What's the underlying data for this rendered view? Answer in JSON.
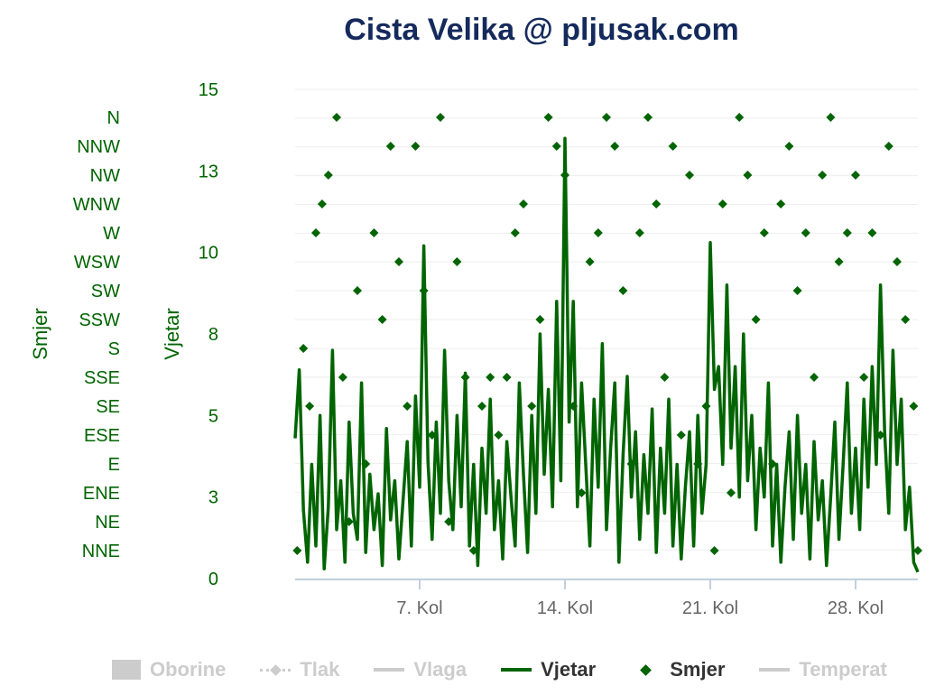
{
  "title": "Cista Velika @ pljusak.com",
  "colors": {
    "title": "#152a5c",
    "series": "#006400",
    "axis_text": "#006400",
    "legend_off": "#cccccc",
    "legend_on": "#333333"
  },
  "y_axis_left": {
    "title": "Vjetar",
    "ticks": [
      "15",
      "13",
      "10",
      "8",
      "5",
      "3",
      "0"
    ],
    "range": [
      0,
      15
    ]
  },
  "y_axis_dir": {
    "title": "Smjer",
    "labels": [
      "N",
      "NNW",
      "NW",
      "WNW",
      "W",
      "WSW",
      "SW",
      "SSW",
      "S",
      "SSE",
      "SE",
      "ESE",
      "E",
      "ENE",
      "NE",
      "NNE"
    ]
  },
  "x_axis": {
    "ticks": [
      "7. Kol",
      "14. Kol",
      "21. Kol",
      "28. Kol"
    ],
    "range_days": [
      1,
      31
    ]
  },
  "legend": [
    {
      "label": "Oborine",
      "symbol": "box",
      "active": false
    },
    {
      "label": "Tlak",
      "symbol": "dash-diamond",
      "active": false
    },
    {
      "label": "Vlaga",
      "symbol": "line",
      "active": false
    },
    {
      "label": "Vjetar",
      "symbol": "line",
      "active": true
    },
    {
      "label": "Smjer",
      "symbol": "diamond",
      "active": true
    },
    {
      "label": "Temperat",
      "symbol": "line",
      "active": false
    }
  ],
  "chart_data": {
    "type": "line",
    "title": "Cista Velika @ pljusak.com",
    "ylabel": "Vjetar",
    "ylim": [
      0,
      15
    ],
    "x_unit": "day of month",
    "grid": true,
    "series": [
      {
        "name": "Vjetar",
        "x": [
          1.0,
          1.2,
          1.4,
          1.6,
          1.8,
          2.0,
          2.2,
          2.4,
          2.6,
          2.8,
          3.0,
          3.2,
          3.4,
          3.6,
          3.8,
          4.0,
          4.2,
          4.4,
          4.6,
          4.8,
          5.0,
          5.2,
          5.4,
          5.6,
          5.8,
          6.0,
          6.2,
          6.4,
          6.6,
          6.8,
          7.0,
          7.2,
          7.4,
          7.6,
          7.8,
          8.0,
          8.2,
          8.4,
          8.6,
          8.8,
          9.0,
          9.2,
          9.4,
          9.6,
          9.8,
          10.0,
          10.2,
          10.4,
          10.6,
          10.8,
          11.0,
          11.2,
          11.4,
          11.6,
          11.8,
          12.0,
          12.2,
          12.4,
          12.6,
          12.8,
          13.0,
          13.2,
          13.4,
          13.6,
          13.8,
          14.0,
          14.2,
          14.4,
          14.6,
          14.8,
          15.0,
          15.2,
          15.4,
          15.6,
          15.8,
          16.0,
          16.2,
          16.4,
          16.6,
          16.8,
          17.0,
          17.2,
          17.4,
          17.6,
          17.8,
          18.0,
          18.2,
          18.4,
          18.6,
          18.8,
          19.0,
          19.2,
          19.4,
          19.6,
          19.8,
          20.0,
          20.2,
          20.4,
          20.6,
          20.8,
          21.0,
          21.2,
          21.4,
          21.6,
          21.8,
          22.0,
          22.2,
          22.4,
          22.6,
          22.8,
          23.0,
          23.2,
          23.4,
          23.6,
          23.8,
          24.0,
          24.2,
          24.4,
          24.6,
          24.8,
          25.0,
          25.2,
          25.4,
          25.6,
          25.8,
          26.0,
          26.2,
          26.4,
          26.6,
          26.8,
          27.0,
          27.2,
          27.4,
          27.6,
          27.8,
          28.0,
          28.2,
          28.4,
          28.6,
          28.8,
          29.0,
          29.2,
          29.4,
          29.6,
          29.8,
          30.0,
          30.2,
          30.4,
          30.6,
          30.8,
          31.0
        ],
        "values": [
          4.3,
          6.4,
          2.1,
          0.5,
          3.5,
          1.0,
          5.0,
          0.3,
          2.2,
          7.0,
          1.5,
          3.0,
          0.5,
          4.8,
          2.0,
          1.2,
          6.0,
          0.8,
          3.2,
          1.5,
          2.6,
          0.4,
          4.6,
          1.8,
          3.0,
          0.6,
          2.4,
          4.2,
          1.0,
          5.6,
          2.8,
          10.2,
          3.6,
          1.2,
          4.8,
          2.0,
          7.0,
          3.0,
          1.5,
          5.0,
          2.2,
          6.3,
          1.0,
          3.5,
          0.4,
          4.0,
          2.0,
          5.5,
          1.5,
          3.0,
          0.6,
          4.2,
          2.5,
          1.0,
          6.0,
          3.2,
          0.8,
          5.0,
          2.0,
          7.5,
          3.2,
          5.8,
          2.2,
          8.5,
          3.0,
          13.5,
          4.8,
          8.5,
          2.2,
          6.0,
          3.5,
          1.0,
          5.5,
          2.8,
          7.2,
          1.5,
          4.0,
          6.0,
          0.5,
          3.8,
          6.2,
          2.5,
          4.5,
          1.2,
          3.8,
          2.0,
          5.2,
          0.8,
          4.0,
          2.0,
          5.5,
          1.0,
          3.5,
          0.6,
          2.8,
          4.5,
          1.0,
          5.0,
          2.0,
          3.5,
          10.3,
          5.8,
          6.5,
          3.5,
          9.0,
          4.0,
          6.5,
          2.5,
          7.5,
          3.0,
          5.0,
          1.5,
          4.0,
          2.5,
          6.0,
          1.0,
          3.5,
          0.5,
          2.8,
          4.5,
          1.2,
          5.0,
          2.0,
          3.5,
          0.6,
          4.2,
          1.8,
          3.0,
          0.4,
          2.5,
          4.8,
          1.2,
          3.5,
          6.0,
          2.0,
          4.0,
          1.5,
          5.5,
          2.8,
          6.5,
          3.5,
          9.0,
          4.5,
          2.0,
          7.0,
          3.5,
          5.5,
          1.5,
          2.8,
          0.5,
          0.2
        ]
      },
      {
        "name": "Smjer",
        "type": "scatter",
        "y_categories": [
          "N",
          "NNW",
          "NW",
          "WNW",
          "W",
          "WSW",
          "SW",
          "SSW",
          "S",
          "SSE",
          "SE",
          "ESE",
          "E",
          "ENE",
          "NE",
          "NNE"
        ],
        "points": [
          [
            1.1,
            "NNE"
          ],
          [
            1.4,
            "S"
          ],
          [
            1.7,
            "SE"
          ],
          [
            2.0,
            "W"
          ],
          [
            2.3,
            "WNW"
          ],
          [
            2.6,
            "NW"
          ],
          [
            3.0,
            "N"
          ],
          [
            3.3,
            "SSE"
          ],
          [
            3.6,
            "NE"
          ],
          [
            4.0,
            "SW"
          ],
          [
            4.4,
            "E"
          ],
          [
            4.8,
            "W"
          ],
          [
            5.2,
            "SSW"
          ],
          [
            5.6,
            "NNW"
          ],
          [
            6.0,
            "WSW"
          ],
          [
            6.4,
            "SE"
          ],
          [
            6.8,
            "NNW"
          ],
          [
            7.2,
            "SW"
          ],
          [
            7.6,
            "ESE"
          ],
          [
            8.0,
            "N"
          ],
          [
            8.4,
            "NE"
          ],
          [
            8.8,
            "WSW"
          ],
          [
            9.2,
            "SSE"
          ],
          [
            9.6,
            "NNE"
          ],
          [
            10.0,
            "SE"
          ],
          [
            10.4,
            "SSE"
          ],
          [
            10.8,
            "ESE"
          ],
          [
            11.2,
            "SSE"
          ],
          [
            11.6,
            "W"
          ],
          [
            12.0,
            "WNW"
          ],
          [
            12.4,
            "SE"
          ],
          [
            12.8,
            "SSW"
          ],
          [
            13.2,
            "N"
          ],
          [
            13.6,
            "NNW"
          ],
          [
            14.0,
            "NW"
          ],
          [
            14.4,
            "SE"
          ],
          [
            14.8,
            "ENE"
          ],
          [
            15.2,
            "WSW"
          ],
          [
            15.6,
            "W"
          ],
          [
            16.0,
            "N"
          ],
          [
            16.4,
            "NNW"
          ],
          [
            16.8,
            "SW"
          ],
          [
            17.2,
            "E"
          ],
          [
            17.6,
            "W"
          ],
          [
            18.0,
            "N"
          ],
          [
            18.4,
            "WNW"
          ],
          [
            18.8,
            "SSE"
          ],
          [
            19.2,
            "NNW"
          ],
          [
            19.6,
            "ESE"
          ],
          [
            20.0,
            "NW"
          ],
          [
            20.4,
            "E"
          ],
          [
            20.8,
            "SE"
          ],
          [
            21.2,
            "NNE"
          ],
          [
            21.6,
            "WNW"
          ],
          [
            22.0,
            "ENE"
          ],
          [
            22.4,
            "N"
          ],
          [
            22.8,
            "NW"
          ],
          [
            23.2,
            "SSW"
          ],
          [
            23.6,
            "W"
          ],
          [
            24.0,
            "E"
          ],
          [
            24.4,
            "WNW"
          ],
          [
            24.8,
            "NNW"
          ],
          [
            25.2,
            "SW"
          ],
          [
            25.6,
            "W"
          ],
          [
            26.0,
            "SSE"
          ],
          [
            26.4,
            "NW"
          ],
          [
            26.8,
            "N"
          ],
          [
            27.2,
            "WSW"
          ],
          [
            27.6,
            "W"
          ],
          [
            28.0,
            "NW"
          ],
          [
            28.4,
            "SSE"
          ],
          [
            28.8,
            "W"
          ],
          [
            29.2,
            "ESE"
          ],
          [
            29.6,
            "NNW"
          ],
          [
            30.0,
            "WSW"
          ],
          [
            30.4,
            "SSW"
          ],
          [
            30.8,
            "SE"
          ],
          [
            31.0,
            "NNE"
          ]
        ]
      }
    ],
    "legend": [
      "Oborine",
      "Tlak",
      "Vlaga",
      "Vjetar",
      "Smjer",
      "Temperat"
    ],
    "legend_position": "bottom"
  }
}
